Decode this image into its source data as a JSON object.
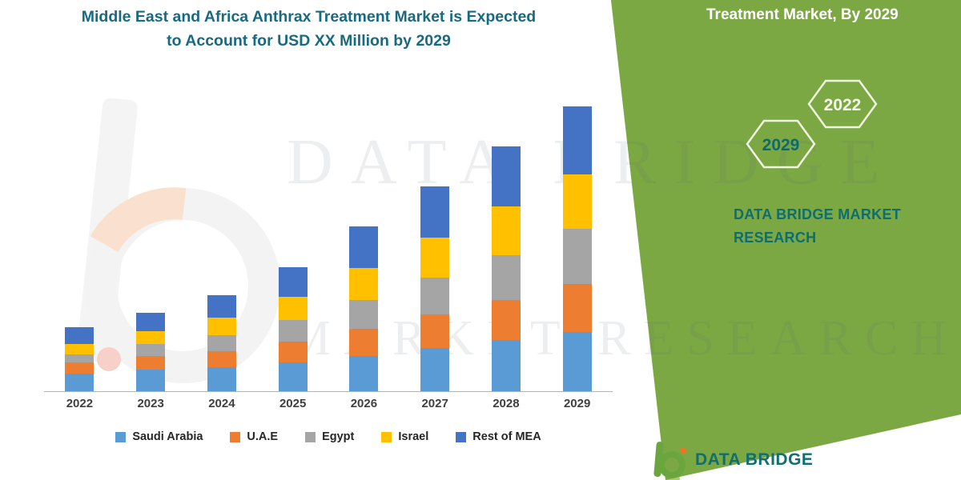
{
  "header": {
    "title_line1": "Middle East and Africa Anthrax Treatment Market is Expected",
    "title_line2": "to Account for USD XX Million by 2029"
  },
  "side_panel": {
    "headline": "Treatment Market, By 2029",
    "hexagons": [
      {
        "year": "2029"
      },
      {
        "year": "2022"
      }
    ],
    "brand_line1": "DATA BRIDGE MARKET",
    "brand_line2": "RESEARCH"
  },
  "watermark": {
    "line1": "DATA BRIDGE",
    "line2": "MARKET RESEARCH"
  },
  "footer": {
    "brand": "DATA BRIDGE"
  },
  "colors": {
    "green_panel": "#7CA844",
    "green_stripe": "#A9CB6A",
    "title_text": "#176A80",
    "brand_teal": "#0D6E72",
    "axis_line": "#B3B3B3",
    "tick_label": "#3F3F3F"
  },
  "chart_data": {
    "type": "bar",
    "stacked": true,
    "title": "Middle East and Africa Anthrax Treatment Market is Expected to Account for USD XX Million by 2029",
    "xlabel": "",
    "ylabel": "",
    "ylim": [
      0,
      36
    ],
    "grid": false,
    "legend_position": "bottom",
    "y_axis_labels_visible": false,
    "values_note": "relative units estimated from bar heights; source masks figures as USD XX Million",
    "categories": [
      "2022",
      "2023",
      "2024",
      "2025",
      "2026",
      "2027",
      "2028",
      "2029"
    ],
    "series": [
      {
        "name": "Saudi Arabia",
        "color": "#5B9BD5",
        "values": [
          2.2,
          2.7,
          3.0,
          3.6,
          4.4,
          5.4,
          6.4,
          7.4
        ]
      },
      {
        "name": "U.A.E",
        "color": "#ED7D31",
        "values": [
          1.4,
          1.7,
          2.0,
          2.6,
          3.4,
          4.2,
          5.0,
          6.0
        ]
      },
      {
        "name": "Egypt",
        "color": "#A5A5A5",
        "values": [
          1.0,
          1.5,
          2.0,
          2.7,
          3.6,
          4.6,
          5.6,
          6.8
        ]
      },
      {
        "name": "Israel",
        "color": "#FFC000",
        "values": [
          1.3,
          1.6,
          2.2,
          2.9,
          4.0,
          5.0,
          6.0,
          6.8
        ]
      },
      {
        "name": "Rest of MEA",
        "color": "#4472C4",
        "values": [
          2.1,
          2.3,
          2.8,
          3.7,
          5.1,
          6.3,
          7.5,
          8.5
        ]
      }
    ]
  }
}
